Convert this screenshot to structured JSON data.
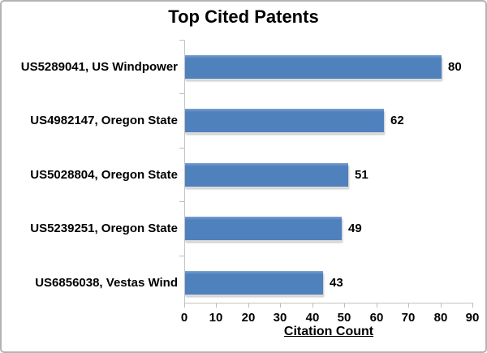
{
  "chart_data": {
    "type": "bar",
    "orientation": "horizontal",
    "title": "Top Cited Patents",
    "xlabel": "Citation Count",
    "categories": [
      "US5289041, US Windpower",
      "US4982147, Oregon State",
      "US5028804, Oregon State",
      "US5239251, Oregon State",
      "US6856038, Vestas Wind"
    ],
    "values": [
      80,
      62,
      51,
      49,
      43
    ],
    "value_labels": [
      "80",
      "62",
      "51",
      "49",
      "43"
    ],
    "xticks": [
      0,
      10,
      20,
      30,
      40,
      50,
      60,
      70,
      80,
      90
    ],
    "xlim": [
      0,
      90
    ],
    "grid": false,
    "bar_color": "#4f81bd",
    "bar_highlight_color": "#7ba1d0",
    "axis_color": "#c4c4c4",
    "text_color": "#000000",
    "background_color": "#ffffff"
  }
}
